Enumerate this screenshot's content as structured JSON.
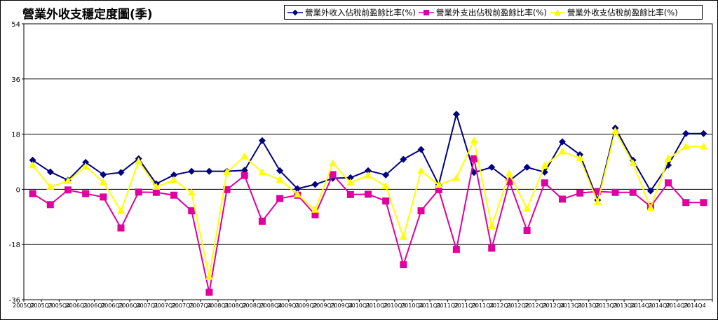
{
  "chart_data": {
    "type": "line",
    "title": "營業外收支穩定度圖(季)",
    "xlabel": "",
    "ylabel": "",
    "ylim": [
      -36,
      54
    ],
    "yticks": [
      54,
      36,
      18,
      0,
      -18,
      -36
    ],
    "grid": true,
    "legend_position": "top-right",
    "categories": [
      "2005Q2",
      "2005Q3",
      "2005Q4",
      "2006Q1",
      "2006Q2",
      "2006Q3",
      "2006Q4",
      "2007Q1",
      "2007Q2",
      "2007Q3",
      "2007Q4",
      "2008Q1",
      "2008Q2",
      "2008Q3",
      "2008Q4",
      "2009Q1",
      "2009Q2",
      "2009Q3",
      "2009Q4",
      "2010Q1",
      "2010Q2",
      "2010Q3",
      "2010Q4",
      "2011Q1",
      "2011Q2",
      "2011Q3",
      "2011Q4",
      "2012Q1",
      "2012Q2",
      "2012Q3",
      "2012Q4",
      "2013Q1",
      "2013Q2",
      "2013Q3",
      "2013Q4",
      "2014Q1",
      "2014Q2",
      "2014Q3",
      "2014Q4"
    ],
    "series": [
      {
        "name": "營業外收入佔稅前盈餘比率(%)",
        "color": "#000080",
        "marker": "diamond",
        "values": [
          9.5,
          5.7,
          3.0,
          8.8,
          4.8,
          5.5,
          10.0,
          1.8,
          4.7,
          5.9,
          5.9,
          5.9,
          6.2,
          15.9,
          6.1,
          0.2,
          1.6,
          3.6,
          3.8,
          6.1,
          4.7,
          9.8,
          13.0,
          1.5,
          24.5,
          5.5,
          7.2,
          2.8,
          7.2,
          5.6,
          15.5,
          11.3,
          -3.5,
          20.0,
          9.5,
          -0.5,
          7.9,
          18.2,
          18.2
        ]
      },
      {
        "name": "營業外支出佔稅前盈餘比率(%)",
        "color": "#e000a0",
        "marker": "square",
        "values": [
          -1.4,
          -5.0,
          -0.2,
          -1.4,
          -2.5,
          -12.6,
          -0.9,
          -1.0,
          -1.9,
          -7.0,
          -33.6,
          -0.1,
          4.5,
          -10.4,
          -3.0,
          -1.9,
          -8.3,
          4.8,
          -1.7,
          -1.6,
          -3.8,
          -24.6,
          -7.0,
          -0.1,
          -19.6,
          10.0,
          -19.2,
          2.5,
          -13.4,
          2.1,
          -3.2,
          -1.2,
          -0.7,
          -1.0,
          -1.0,
          -5.6,
          2.1,
          -4.3,
          -4.3
        ]
      },
      {
        "name": "營業外收支佔稅前盈餘比率(%)",
        "color": "#ffff00",
        "marker": "triangle",
        "values": [
          7.8,
          0.8,
          2.7,
          7.4,
          2.3,
          -7.1,
          9.1,
          0.8,
          3.0,
          -1.1,
          -28.6,
          5.6,
          10.7,
          5.5,
          3.1,
          -1.7,
          -6.7,
          8.5,
          2.2,
          4.5,
          1.0,
          -15.6,
          6.0,
          1.4,
          3.7,
          15.9,
          -12.0,
          5.1,
          -6.4,
          7.7,
          12.3,
          10.1,
          -4.2,
          19.0,
          8.5,
          -6.1,
          10.0,
          13.9,
          13.9
        ]
      }
    ],
    "x_tick_labels": [
      "2005Q2",
      "2005Q3",
      "2005Q4",
      "2006Q1",
      "2006Q2",
      "2006Q3",
      "2006Q4",
      "2007Q1",
      "2007Q2",
      "2007Q3",
      "2007Q4",
      "2008Q1",
      "2008Q2",
      "2008Q3",
      "2008Q4",
      "2009Q1",
      "2009Q2",
      "2009Q3",
      "2009Q4",
      "2010Q1",
      "2010Q2",
      "2010Q3",
      "2010Q4",
      "2011Q1",
      "2011Q2",
      "2011Q3",
      "2011Q4",
      "2012Q1",
      "2012Q2",
      "2012Q3",
      "2012Q4",
      "2013Q1",
      "2013Q2",
      "2013Q3",
      "2013Q4",
      "2014Q1",
      "2014Q2",
      "2014Q3",
      "2014Q4"
    ]
  }
}
